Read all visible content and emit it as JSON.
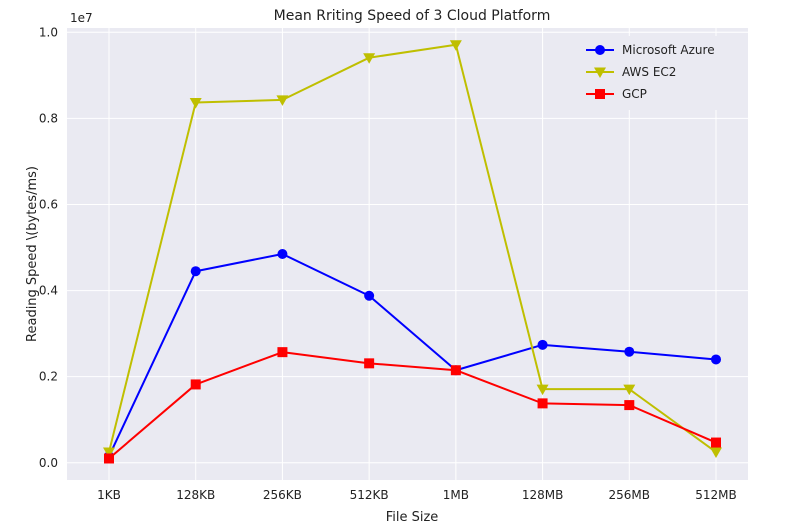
{
  "chart_data": {
    "type": "line",
    "title": "Mean Rriting Speed of 3 Cloud Platform",
    "xlabel": "File Size",
    "ylabel": "Reading Speed \\(bytes/ms)",
    "y_offset_label": "1e7",
    "categories": [
      "1KB",
      "128KB",
      "256KB",
      "512KB",
      "1MB",
      "128MB",
      "256MB",
      "512MB"
    ],
    "ylim": [
      -0.04,
      1.01
    ],
    "yticks": [
      0.0,
      0.2,
      0.4,
      0.6,
      0.8,
      1.0
    ],
    "ytick_labels": [
      "0.0",
      "0.2",
      "0.4",
      "0.6",
      "0.8",
      "1.0"
    ],
    "grid": true,
    "legend_position": "top-right",
    "series": [
      {
        "name": "Microsoft Azure",
        "color": "#0000ff",
        "marker": "circle",
        "values": [
          0.015,
          0.445,
          0.485,
          0.388,
          0.215,
          0.274,
          0.258,
          0.24
        ]
      },
      {
        "name": "AWS EC2",
        "color": "#bfbf00",
        "marker": "triangle-down",
        "values": [
          0.025,
          0.837,
          0.843,
          0.941,
          0.971,
          0.171,
          0.171,
          0.025
        ]
      },
      {
        "name": "GCP",
        "color": "#ff0000",
        "marker": "square",
        "values": [
          0.01,
          0.182,
          0.257,
          0.231,
          0.215,
          0.138,
          0.134,
          0.047
        ]
      }
    ]
  }
}
